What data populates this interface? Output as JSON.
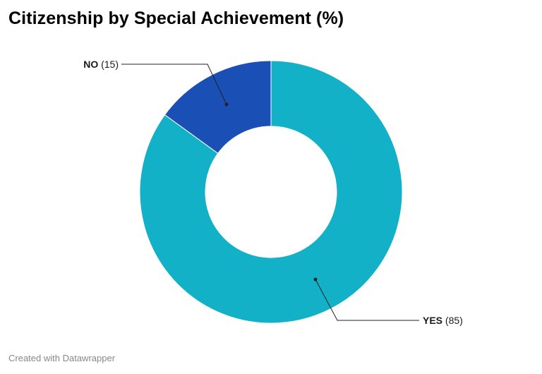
{
  "title": "Citizenship by Special Achievement (%)",
  "footer": "Created with Datawrapper",
  "chart_data": {
    "type": "pie",
    "donut": true,
    "title": "Citizenship by Special Achievement (%)",
    "categories": [
      "YES",
      "NO"
    ],
    "values": [
      85,
      15
    ],
    "colors": [
      "#12b1c8",
      "#1a4fb5"
    ],
    "labels": [
      {
        "name": "YES",
        "value_text": "(85)"
      },
      {
        "name": "NO",
        "value_text": "(15)"
      }
    ]
  }
}
